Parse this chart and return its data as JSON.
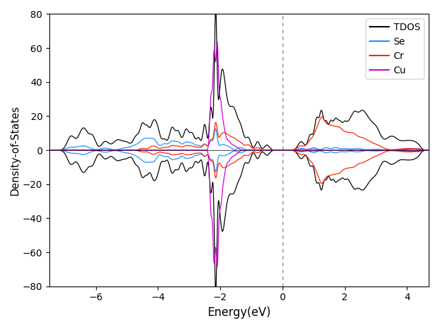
{
  "xlabel": "Energy(eV)",
  "ylabel": "Density-of-States",
  "xlim": [
    -7.5,
    4.7
  ],
  "ylim": [
    -80,
    80
  ],
  "xticks": [
    -6,
    -4,
    -2,
    0,
    2,
    4
  ],
  "yticks": [
    -80,
    -60,
    -40,
    -20,
    0,
    20,
    40,
    60,
    80
  ],
  "vline_x": 0.0,
  "legend_labels": [
    "TDOS",
    "Se",
    "Cr",
    "Cu"
  ],
  "colors": {
    "tdos": "black",
    "se": "#1e90ff",
    "cr": "#ff2200",
    "cu": "#cc00cc"
  },
  "figsize": [
    6.4,
    4.8
  ],
  "dpi": 100
}
